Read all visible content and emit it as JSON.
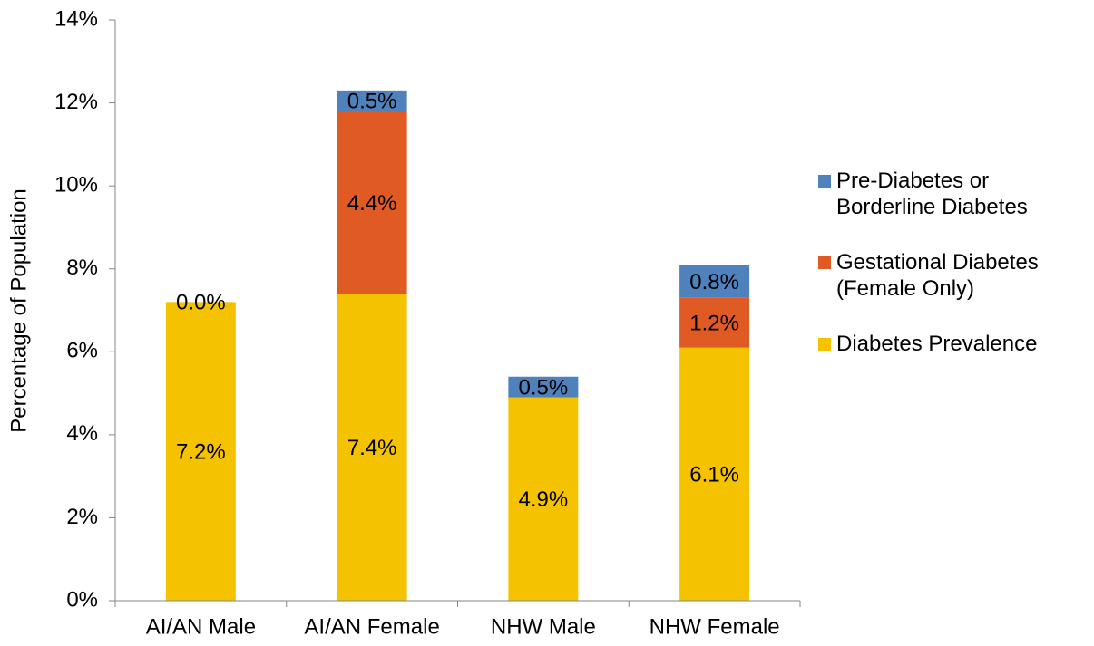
{
  "chart_data": {
    "type": "stacked-bar",
    "y_label": "Percentage of Population",
    "categories": [
      "AI/AN Male",
      "AI/AN Female",
      "NHW Male",
      "NHW Female"
    ],
    "series": [
      {
        "name": "Diabetes Prevalence",
        "color": "#f5c200",
        "values": [
          7.2,
          7.4,
          4.9,
          6.1
        ],
        "value_labels": [
          "7.2%",
          "7.4%",
          "4.9%",
          "6.1%"
        ]
      },
      {
        "name": "Gestational Diabetes (Female Only)",
        "color": "#e05a24",
        "values": [
          null,
          4.4,
          null,
          1.2
        ],
        "value_labels": [
          null,
          "4.4%",
          null,
          "1.2%"
        ]
      },
      {
        "name": "Pre-Diabetes or Borderline Diabetes",
        "color": "#4f81bd",
        "values": [
          0.0,
          0.5,
          0.5,
          0.8
        ],
        "value_labels": [
          "0.0%",
          "0.5%",
          "0.5%",
          "0.8%"
        ]
      }
    ],
    "ylim": [
      0,
      14
    ],
    "yticks": [
      {
        "value": 0,
        "label": "0%"
      },
      {
        "value": 2,
        "label": "2%"
      },
      {
        "value": 4,
        "label": "4%"
      },
      {
        "value": 6,
        "label": "6%"
      },
      {
        "value": 8,
        "label": "8%"
      },
      {
        "value": 10,
        "label": "10%"
      },
      {
        "value": 12,
        "label": "12%"
      },
      {
        "value": 14,
        "label": "14%"
      }
    ],
    "legend": "right"
  }
}
